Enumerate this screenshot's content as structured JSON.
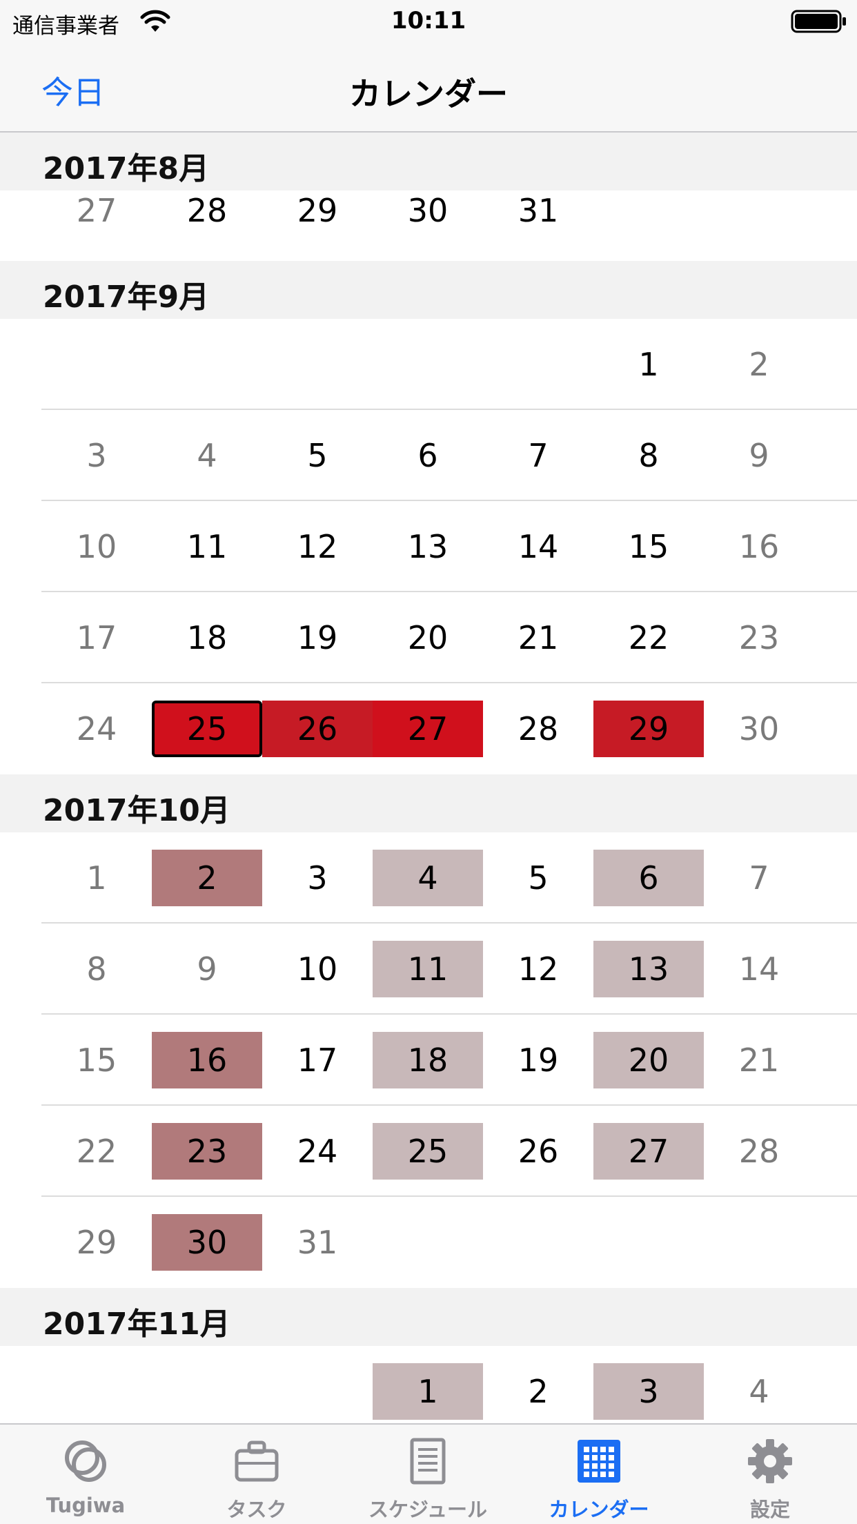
{
  "status_bar": {
    "carrier": "通信事業者",
    "time": "10:11"
  },
  "nav": {
    "left_button": "今日",
    "title": "カレンダー"
  },
  "calendar": {
    "months": [
      {
        "title": "2017年8月",
        "weeks": [
          [
            {
              "d": "27",
              "we": true
            },
            {
              "d": "28"
            },
            {
              "d": "29"
            },
            {
              "d": "30"
            },
            {
              "d": "31"
            },
            null,
            null
          ]
        ]
      },
      {
        "title": "2017年9月",
        "weeks": [
          [
            null,
            null,
            null,
            null,
            null,
            {
              "d": "1"
            },
            {
              "d": "2",
              "we": true
            }
          ],
          [
            {
              "d": "3",
              "we": true
            },
            {
              "d": "4",
              "we": true
            },
            {
              "d": "5"
            },
            {
              "d": "6"
            },
            {
              "d": "7"
            },
            {
              "d": "8"
            },
            {
              "d": "9",
              "we": true
            }
          ],
          [
            {
              "d": "10",
              "we": true
            },
            {
              "d": "11"
            },
            {
              "d": "12"
            },
            {
              "d": "13"
            },
            {
              "d": "14"
            },
            {
              "d": "15"
            },
            {
              "d": "16",
              "we": true
            }
          ],
          [
            {
              "d": "17",
              "we": true
            },
            {
              "d": "18"
            },
            {
              "d": "19"
            },
            {
              "d": "20"
            },
            {
              "d": "21"
            },
            {
              "d": "22"
            },
            {
              "d": "23",
              "we": true
            }
          ],
          [
            {
              "d": "24",
              "we": true
            },
            {
              "d": "25",
              "hl": "red",
              "sel": true
            },
            {
              "d": "26",
              "hl": "red2"
            },
            {
              "d": "27",
              "hl": "red"
            },
            {
              "d": "28"
            },
            {
              "d": "29",
              "hl": "red2"
            },
            {
              "d": "30",
              "we": true
            }
          ]
        ]
      },
      {
        "title": "2017年10月",
        "weeks": [
          [
            {
              "d": "1",
              "we": true
            },
            {
              "d": "2",
              "hl": "rose"
            },
            {
              "d": "3"
            },
            {
              "d": "4",
              "hl": "pale"
            },
            {
              "d": "5"
            },
            {
              "d": "6",
              "hl": "pale"
            },
            {
              "d": "7",
              "we": true
            }
          ],
          [
            {
              "d": "8",
              "we": true
            },
            {
              "d": "9",
              "we": true
            },
            {
              "d": "10"
            },
            {
              "d": "11",
              "hl": "pale"
            },
            {
              "d": "12"
            },
            {
              "d": "13",
              "hl": "pale"
            },
            {
              "d": "14",
              "we": true
            }
          ],
          [
            {
              "d": "15",
              "we": true
            },
            {
              "d": "16",
              "hl": "rose"
            },
            {
              "d": "17"
            },
            {
              "d": "18",
              "hl": "pale"
            },
            {
              "d": "19"
            },
            {
              "d": "20",
              "hl": "pale"
            },
            {
              "d": "21",
              "we": true
            }
          ],
          [
            {
              "d": "22",
              "we": true
            },
            {
              "d": "23",
              "hl": "rose"
            },
            {
              "d": "24"
            },
            {
              "d": "25",
              "hl": "pale"
            },
            {
              "d": "26"
            },
            {
              "d": "27",
              "hl": "pale"
            },
            {
              "d": "28",
              "we": true
            }
          ],
          [
            {
              "d": "29",
              "we": true
            },
            {
              "d": "30",
              "hl": "rose"
            },
            {
              "d": "31",
              "we": true
            },
            null,
            null,
            null,
            null
          ]
        ]
      },
      {
        "title": "2017年11月",
        "weeks": [
          [
            null,
            null,
            null,
            {
              "d": "1",
              "hl": "pale"
            },
            {
              "d": "2"
            },
            {
              "d": "3",
              "hl": "pale"
            },
            {
              "d": "4",
              "we": true
            }
          ]
        ]
      }
    ]
  },
  "tabs": [
    {
      "label": "Tugiwa",
      "icon": "rings-icon",
      "active": false
    },
    {
      "label": "タスク",
      "icon": "briefcase-icon",
      "active": false
    },
    {
      "label": "スケジュール",
      "icon": "document-icon",
      "active": false
    },
    {
      "label": "カレンダー",
      "icon": "calendar-grid-icon",
      "active": true
    },
    {
      "label": "設定",
      "icon": "gear-icon",
      "active": false
    }
  ],
  "colors": {
    "accent": "#1b6ef3",
    "highlight_red": "#d0101c",
    "highlight_rose": "#b17a7b",
    "highlight_pale": "#c8b8b9"
  }
}
